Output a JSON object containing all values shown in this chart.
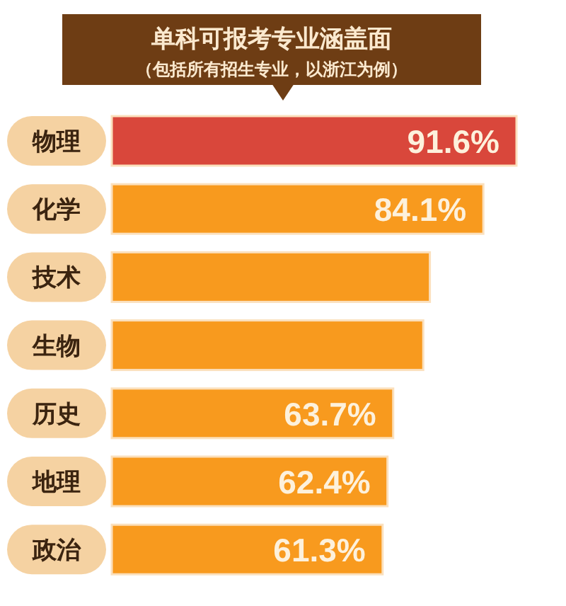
{
  "chart_data": {
    "type": "bar",
    "orientation": "horizontal",
    "title": "单科可报考专业涵盖面",
    "subtitle": "（包括所有招生专业，以浙江为例）",
    "categories": [
      "物理",
      "化学",
      "技术",
      "生物",
      "历史",
      "地理",
      "政治"
    ],
    "values": [
      91.6,
      84.1,
      72,
      70.5,
      63.7,
      62.4,
      61.3
    ],
    "colors": [
      "#d9473b",
      "#f89a1e",
      "#f89a1e",
      "#f89a1e",
      "#f89a1e",
      "#f89a1e",
      "#f89a1e"
    ],
    "value_labels": [
      "91.6%",
      "84.1%",
      null,
      null,
      "63.7%",
      "62.4%",
      "61.3%"
    ]
  }
}
